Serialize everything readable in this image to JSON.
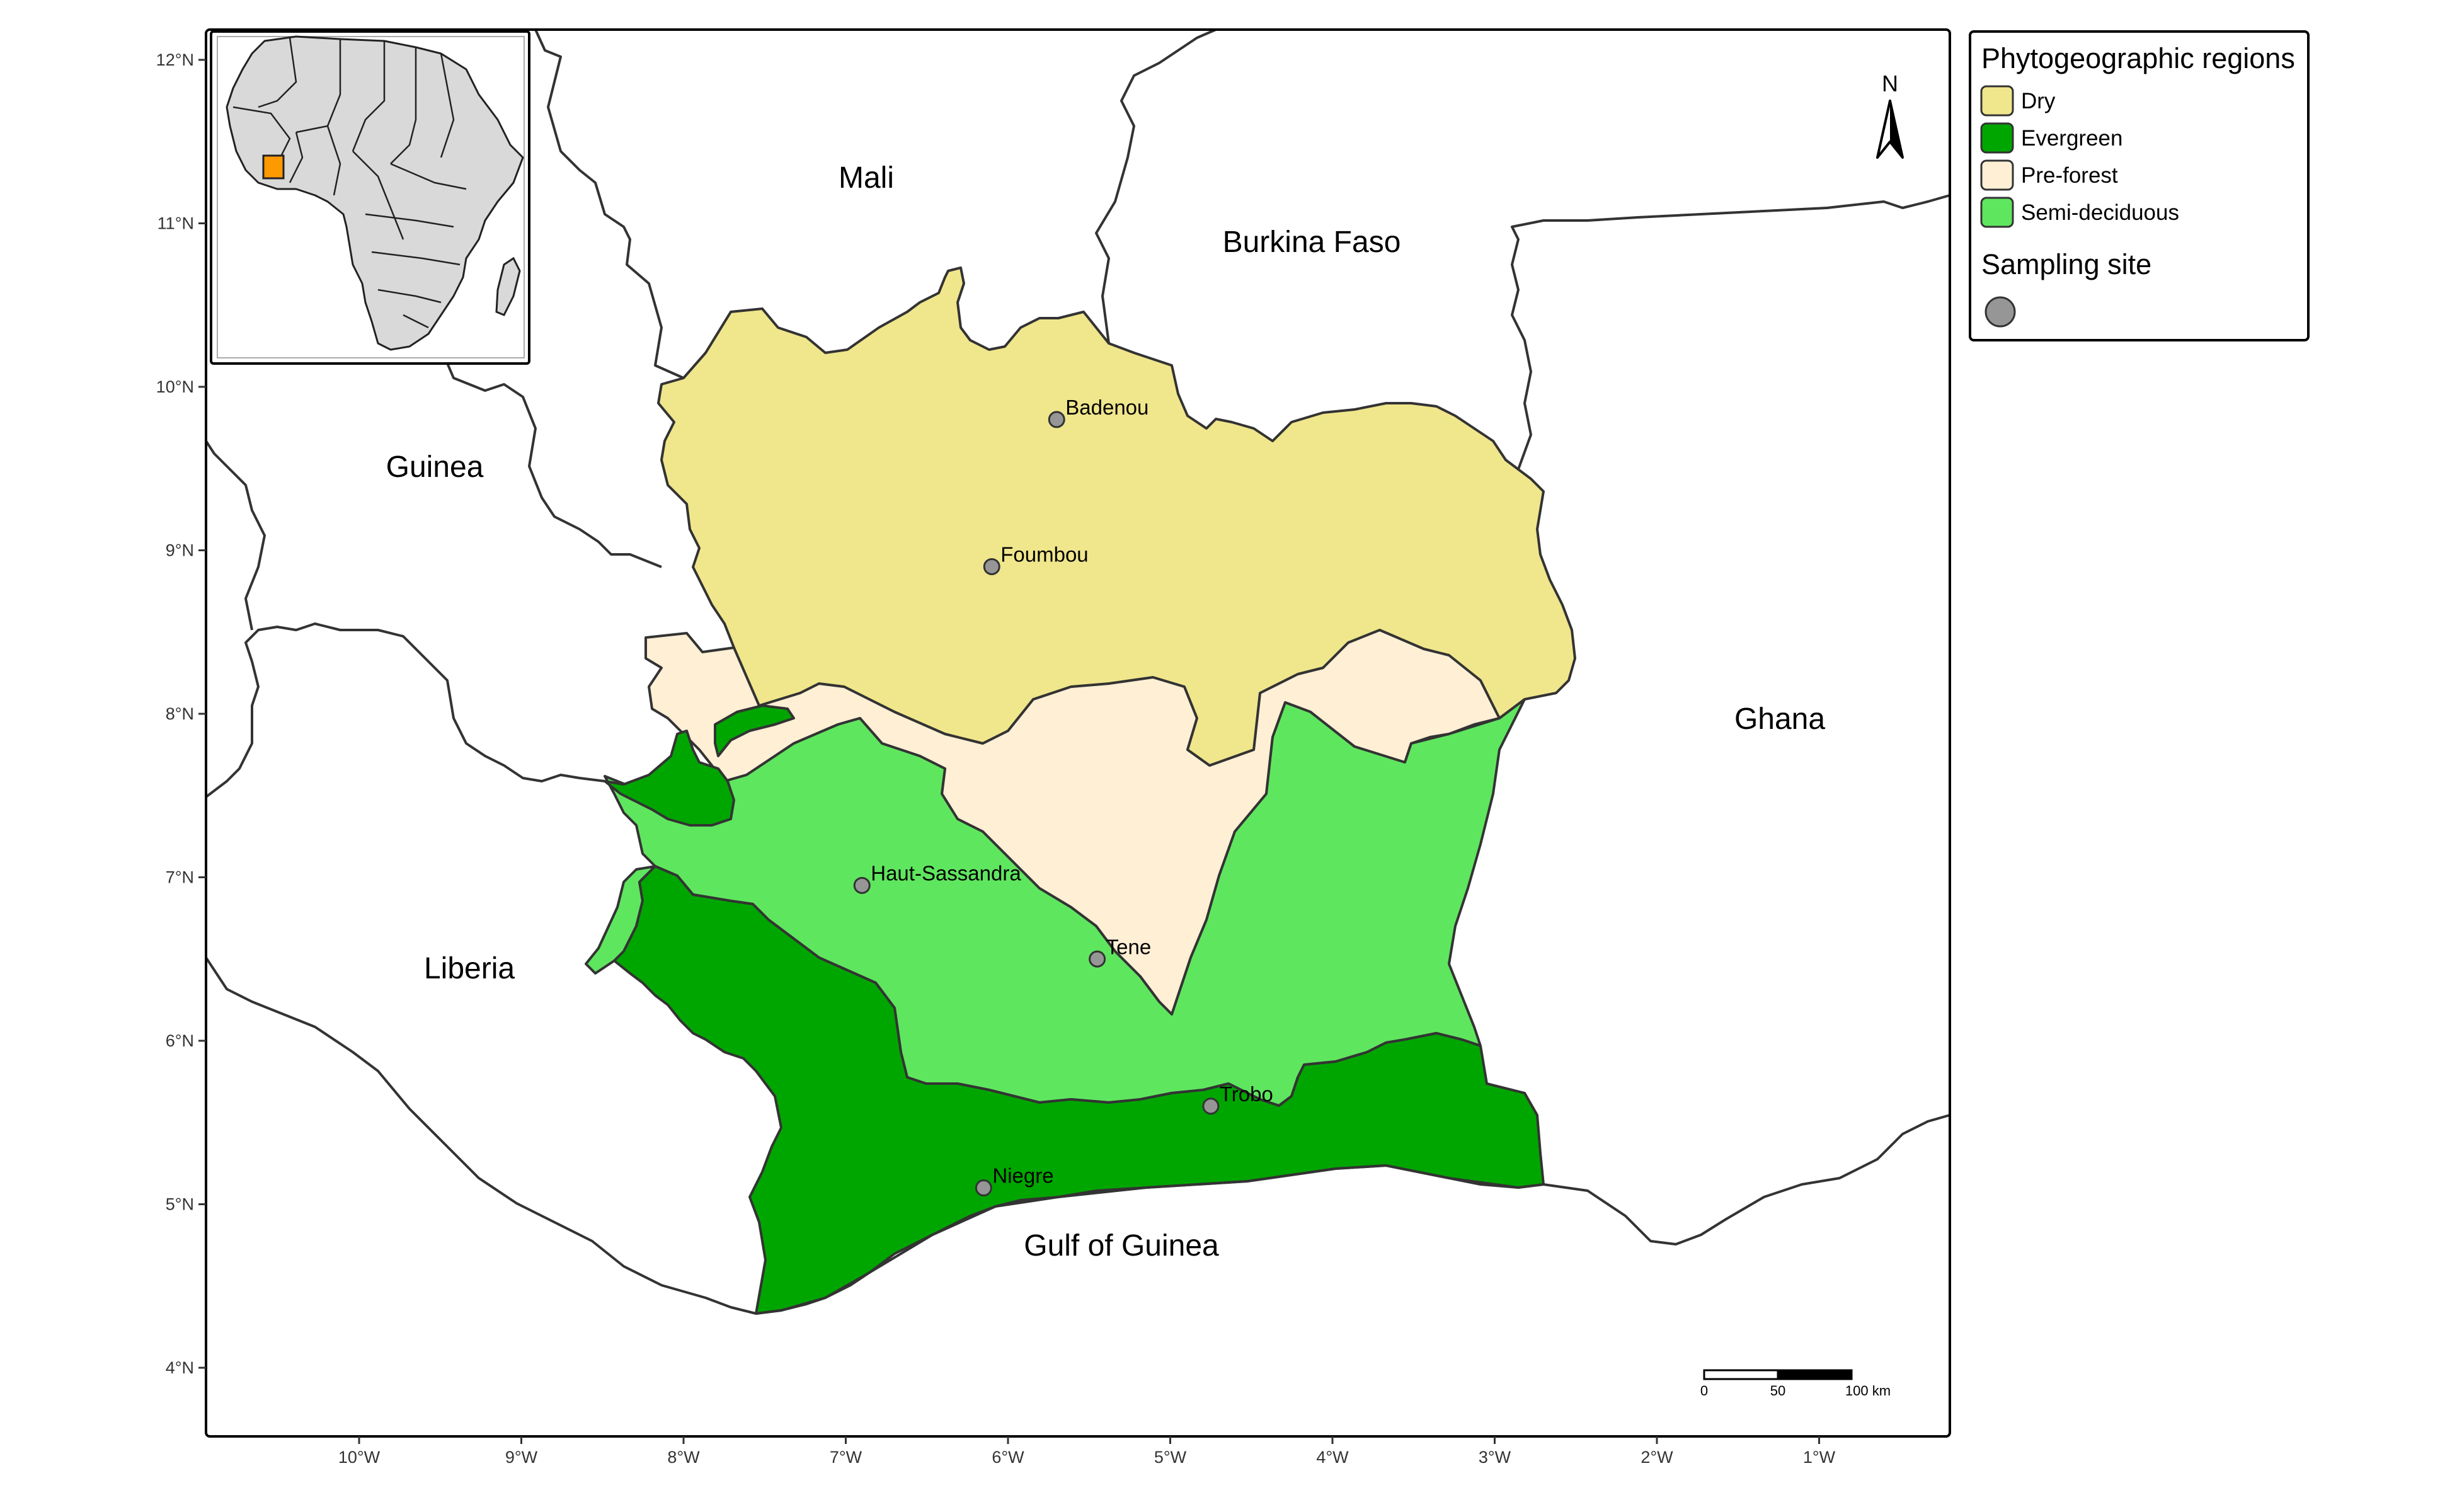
{
  "colors": {
    "dry": "#f0e68c",
    "evergreen": "#00a600",
    "preforest": "#feefd5",
    "semideciduous": "#5fe65f",
    "site": "#969696",
    "highlight": "#ff9900",
    "africa": "#d9d9d9"
  },
  "map": {
    "x_ticks": [
      "10°W",
      "9°W",
      "8°W",
      "7°W",
      "6°W",
      "5°W",
      "4°W",
      "3°W",
      "2°W",
      "1°W"
    ],
    "y_ticks": [
      "12°N",
      "11°N",
      "10°N",
      "9°N",
      "8°N",
      "7°N",
      "6°N",
      "5°N",
      "4°N"
    ],
    "countries": [
      "Mali",
      "Burkina Faso",
      "Guinea",
      "Ghana",
      "Liberia",
      "Gulf of Guinea"
    ],
    "sites": [
      {
        "name": "Badenou",
        "lon": -5.7,
        "lat": 9.8
      },
      {
        "name": "Foumbou",
        "lon": -6.1,
        "lat": 8.9
      },
      {
        "name": "Haut-Sassandra",
        "lon": -6.9,
        "lat": 6.95
      },
      {
        "name": "Tene",
        "lon": -5.45,
        "lat": 6.5
      },
      {
        "name": "Trobo",
        "lon": -4.75,
        "lat": 5.6
      },
      {
        "name": "Niegre",
        "lon": -6.15,
        "lat": 5.1
      }
    ],
    "north_label": "N",
    "scale_labels": [
      "0",
      "50",
      "100 km"
    ]
  },
  "legend": {
    "title": "Phytogeographic regions",
    "items": [
      "Dry",
      "Evergreen",
      "Pre-forest",
      "Semi-deciduous"
    ],
    "site_title": "Sampling site"
  }
}
